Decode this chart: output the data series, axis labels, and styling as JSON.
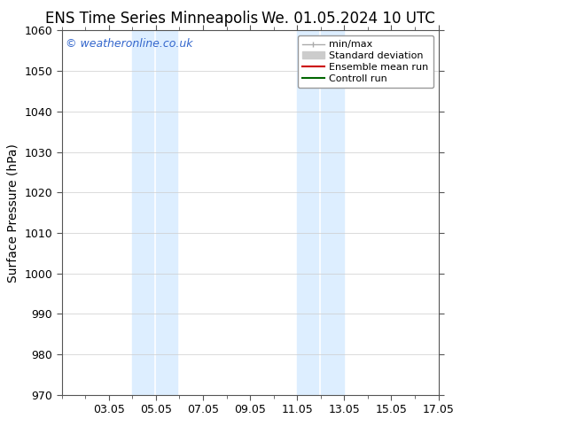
{
  "title_left": "ENS Time Series Minneapolis",
  "title_right": "We. 01.05.2024 10 UTC",
  "ylabel": "Surface Pressure (hPa)",
  "ylim": [
    970,
    1060
  ],
  "yticks": [
    970,
    980,
    990,
    1000,
    1010,
    1020,
    1030,
    1040,
    1050,
    1060
  ],
  "xlim": [
    1.0,
    17.0
  ],
  "xtick_labels": [
    "03.05",
    "05.05",
    "07.05",
    "09.05",
    "11.05",
    "13.05",
    "15.05",
    "17.05"
  ],
  "xtick_positions": [
    3,
    5,
    7,
    9,
    11,
    13,
    15,
    17
  ],
  "shaded_bands": [
    {
      "x_start": 4.0,
      "x_end": 4.9,
      "color": "#ddeeff"
    },
    {
      "x_start": 5.0,
      "x_end": 5.9,
      "color": "#ddeeff"
    },
    {
      "x_start": 11.0,
      "x_end": 11.9,
      "color": "#ddeeff"
    },
    {
      "x_start": 12.0,
      "x_end": 13.0,
      "color": "#ddeeff"
    }
  ],
  "watermark_text": "© weatheronline.co.uk",
  "watermark_color": "#3366cc",
  "background_color": "#ffffff",
  "plot_bg_color": "#ffffff",
  "grid_color": "#cccccc",
  "title_fontsize": 12,
  "axis_label_fontsize": 10,
  "tick_fontsize": 9,
  "legend_fontsize": 8
}
